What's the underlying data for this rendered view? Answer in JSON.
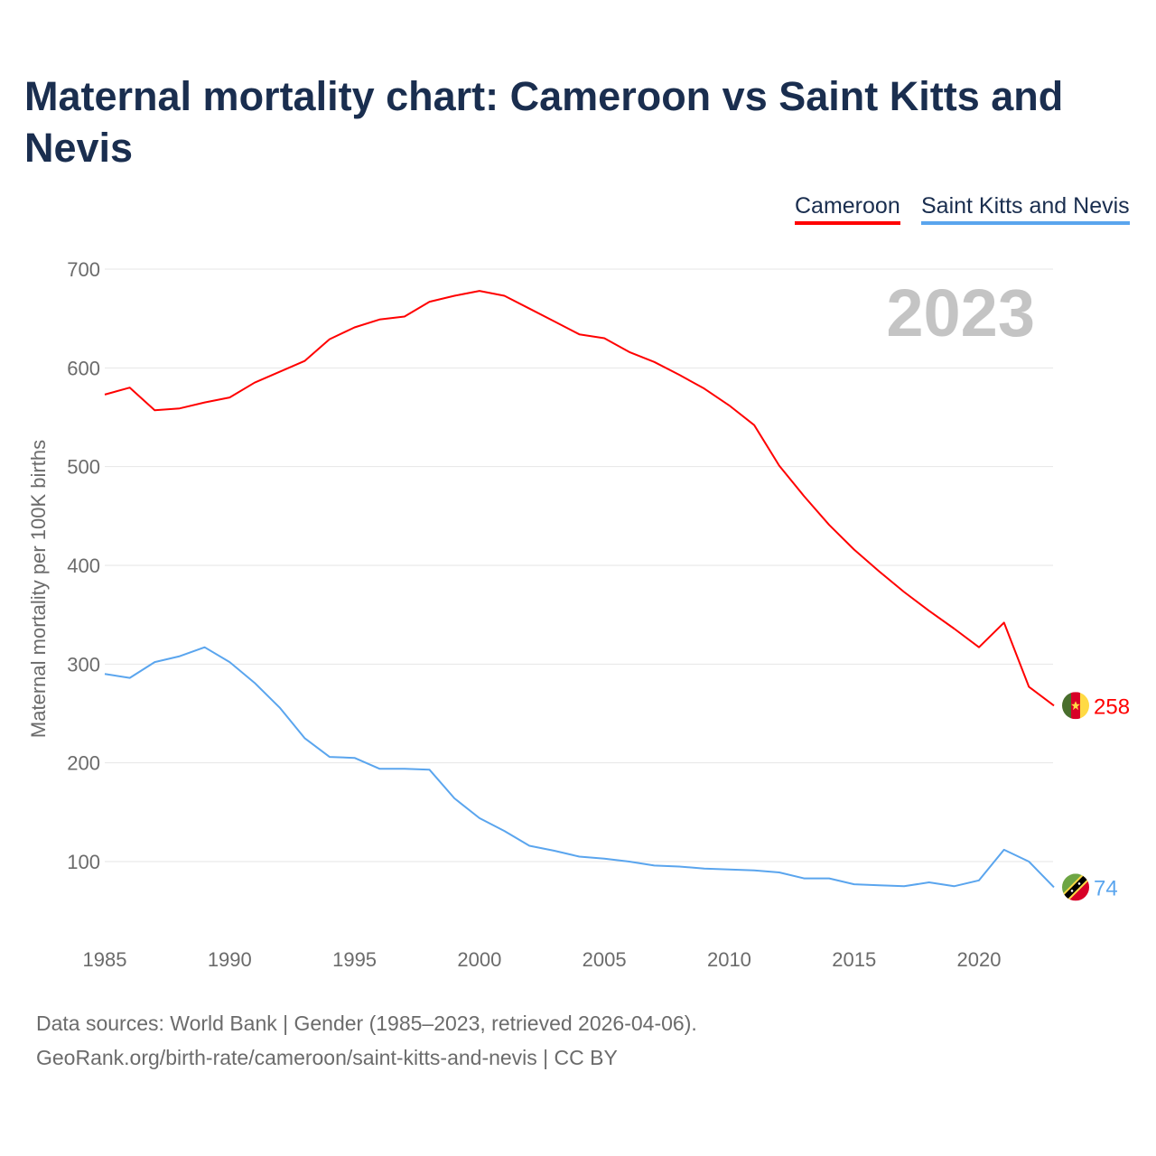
{
  "title": "Maternal mortality chart: Cameroon vs Saint Kitts and Nevis",
  "footer": {
    "line1": "Data sources: World Bank | Gender (1985–2023, retrieved 2026-04-06).",
    "line2": "GeoRank.org/birth-rate/cameroon/saint-kitts-and-nevis | CC BY"
  },
  "chart_data": {
    "type": "line",
    "title": "Maternal mortality chart: Cameroon vs Saint Kitts and Nevis",
    "xlabel": "",
    "ylabel": "Maternal mortality per 100K births",
    "year_label": "2023",
    "xlim": [
      1985,
      2023
    ],
    "ylim": [
      40,
      700
    ],
    "xticks": [
      1985,
      1990,
      1995,
      2000,
      2005,
      2010,
      2015,
      2020
    ],
    "yticks": [
      100,
      200,
      300,
      400,
      500,
      600,
      700
    ],
    "grid": true,
    "legend_position": "top-right",
    "x": [
      1985,
      1986,
      1987,
      1988,
      1989,
      1990,
      1991,
      1992,
      1993,
      1994,
      1995,
      1996,
      1997,
      1998,
      1999,
      2000,
      2001,
      2002,
      2003,
      2004,
      2005,
      2006,
      2007,
      2008,
      2009,
      2010,
      2011,
      2012,
      2013,
      2014,
      2015,
      2016,
      2017,
      2018,
      2019,
      2020,
      2021,
      2022,
      2023
    ],
    "series": [
      {
        "name": "Cameroon",
        "color": "#ff0000",
        "end_label": "258",
        "values": [
          573,
          580,
          557,
          559,
          565,
          570,
          585,
          596,
          607,
          629,
          641,
          649,
          652,
          667,
          673,
          678,
          673,
          660,
          647,
          634,
          630,
          616,
          606,
          593,
          579,
          562,
          542,
          501,
          470,
          441,
          416,
          394,
          373,
          354,
          336,
          317,
          342,
          277,
          258
        ]
      },
      {
        "name": "Saint Kitts and Nevis",
        "color": "#5aa5ee",
        "end_label": "74",
        "values": [
          290,
          286,
          302,
          308,
          317,
          302,
          281,
          256,
          225,
          206,
          205,
          194,
          194,
          193,
          164,
          144,
          131,
          116,
          111,
          105,
          103,
          100,
          96,
          95,
          93,
          92,
          91,
          89,
          83,
          83,
          77,
          76,
          75,
          79,
          75,
          81,
          112,
          100,
          74
        ]
      }
    ]
  }
}
